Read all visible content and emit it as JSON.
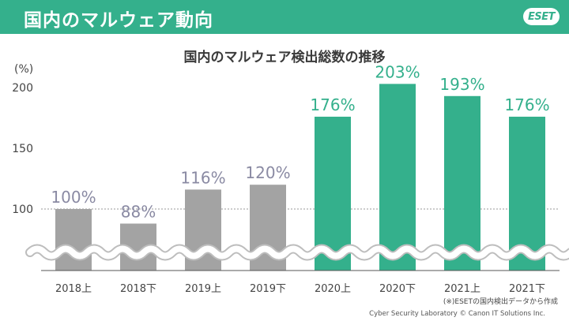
{
  "header": {
    "title": "国内のマルウェア動向",
    "logo": "ESET"
  },
  "colors": {
    "accent": "#34b08c",
    "past_bar": "#a3a3a3",
    "past_label": "#8a8aa3",
    "break_wave": "#ffffff"
  },
  "chart_data": {
    "type": "bar",
    "title": "国内のマルウェア検出総数の推移",
    "ylabel": "(%)",
    "xlabel": "",
    "categories": [
      "2018上",
      "2018下",
      "2019上",
      "2019下",
      "2020上",
      "2020下",
      "2021上",
      "2021下"
    ],
    "values": [
      100,
      88,
      116,
      120,
      176,
      203,
      193,
      176
    ],
    "labels": [
      "100%",
      "88%",
      "116%",
      "120%",
      "176%",
      "203%",
      "193%",
      "176%"
    ],
    "highlight_from_index": 4,
    "yticks": [
      100,
      150,
      200
    ],
    "ylim": [
      50,
      200
    ],
    "axis_break": true,
    "reference_line": 100,
    "grid": false
  },
  "footnote": "(※)ESETの国内検出データから作成",
  "credit": "Cyber Security Laboratory © Canon IT Solutions Inc."
}
